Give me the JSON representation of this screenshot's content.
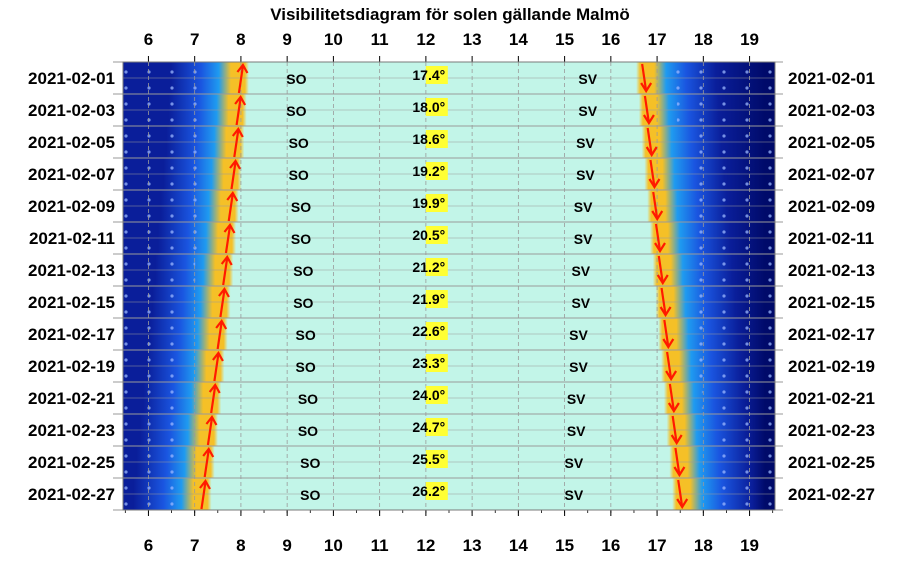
{
  "chart_data": {
    "type": "heatmap",
    "title": "Visibilitetsdiagram för solen gällande Malmö",
    "x_ticks": [
      "6",
      "7",
      "8",
      "9",
      "10",
      "11",
      "12",
      "13",
      "14",
      "15",
      "16",
      "17",
      "18",
      "19"
    ],
    "x_range": [
      5.45,
      19.55
    ],
    "rows": [
      {
        "date": "2021-02-01",
        "sunrise": 8.0,
        "sunset": 16.72,
        "max_alt": "17.4°",
        "so_x": 9.2,
        "sv_x": 15.5
      },
      {
        "date": "2021-02-03",
        "sunrise": 7.95,
        "sunset": 16.78,
        "max_alt": "18.0°",
        "so_x": 9.2,
        "sv_x": 15.5
      },
      {
        "date": "2021-02-05",
        "sunrise": 7.9,
        "sunset": 16.84,
        "max_alt": "18.6°",
        "so_x": 9.25,
        "sv_x": 15.45
      },
      {
        "date": "2021-02-07",
        "sunrise": 7.84,
        "sunset": 16.9,
        "max_alt": "19.2°",
        "so_x": 9.25,
        "sv_x": 15.45
      },
      {
        "date": "2021-02-09",
        "sunrise": 7.78,
        "sunset": 16.96,
        "max_alt": "19.9°",
        "so_x": 9.3,
        "sv_x": 15.4
      },
      {
        "date": "2021-02-11",
        "sunrise": 7.72,
        "sunset": 17.02,
        "max_alt": "20.5°",
        "so_x": 9.3,
        "sv_x": 15.4
      },
      {
        "date": "2021-02-13",
        "sunrise": 7.66,
        "sunset": 17.08,
        "max_alt": "21.2°",
        "so_x": 9.35,
        "sv_x": 15.35
      },
      {
        "date": "2021-02-15",
        "sunrise": 7.6,
        "sunset": 17.14,
        "max_alt": "21.9°",
        "so_x": 9.35,
        "sv_x": 15.35
      },
      {
        "date": "2021-02-17",
        "sunrise": 7.54,
        "sunset": 17.2,
        "max_alt": "22.6°",
        "so_x": 9.4,
        "sv_x": 15.3
      },
      {
        "date": "2021-02-19",
        "sunrise": 7.47,
        "sunset": 17.26,
        "max_alt": "23.3°",
        "so_x": 9.4,
        "sv_x": 15.3
      },
      {
        "date": "2021-02-21",
        "sunrise": 7.4,
        "sunset": 17.32,
        "max_alt": "24.0°",
        "so_x": 9.45,
        "sv_x": 15.25
      },
      {
        "date": "2021-02-23",
        "sunrise": 7.33,
        "sunset": 17.38,
        "max_alt": "24.7°",
        "so_x": 9.45,
        "sv_x": 15.25
      },
      {
        "date": "2021-02-25",
        "sunrise": 7.26,
        "sunset": 17.44,
        "max_alt": "25.5°",
        "so_x": 9.5,
        "sv_x": 15.2
      },
      {
        "date": "2021-02-27",
        "sunrise": 7.19,
        "sunset": 17.5,
        "max_alt": "26.2°",
        "so_x": 9.5,
        "sv_x": 15.2
      }
    ],
    "noon_x": 12.15,
    "labels": {
      "southeast": "SO",
      "southwest": "SV"
    },
    "colors": {
      "day": "#c2f5e8",
      "twilight_inner": "#f5c027",
      "twilight_mid": "#1f9bf0",
      "night": "#0a1e9a",
      "deep_night": "#000a6a",
      "arrow": "#ff1a00",
      "label_bg": "#ffff33",
      "grid": "#9a9a9a"
    },
    "grid": true
  }
}
